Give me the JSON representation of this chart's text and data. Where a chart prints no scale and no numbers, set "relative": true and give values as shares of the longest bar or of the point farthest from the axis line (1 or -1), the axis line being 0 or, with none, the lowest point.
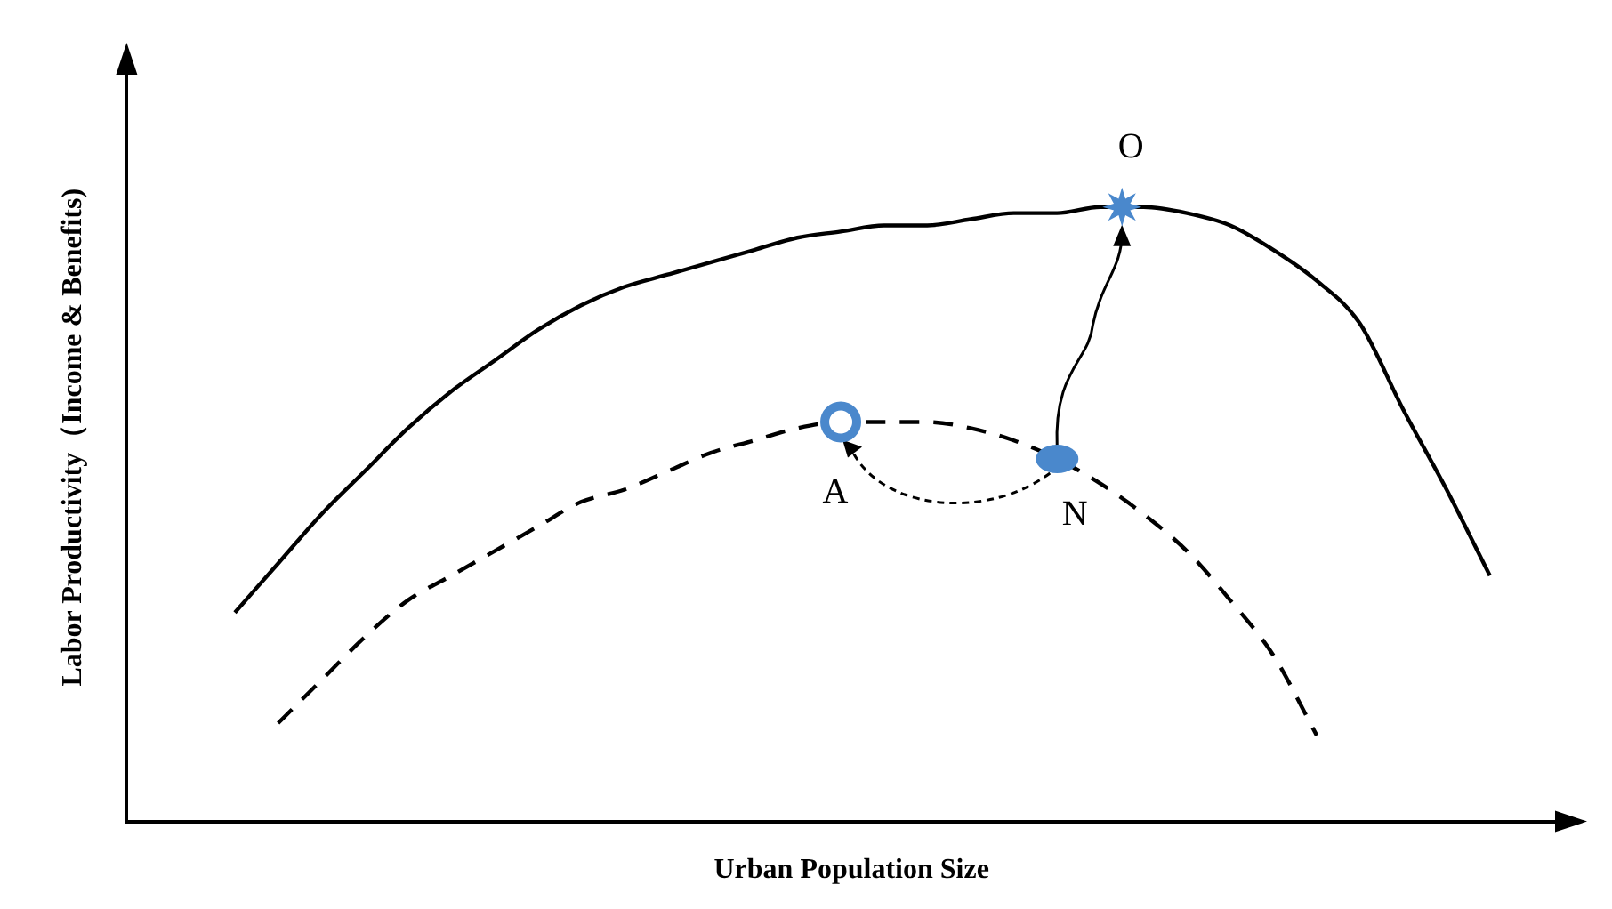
{
  "chart_data": {
    "type": "line",
    "relative": true,
    "xlabel": "Urban Population Size",
    "ylabel": "Labor Productivity（Income & Benefits)",
    "categories": [
      null,
      null,
      null,
      null,
      null,
      null,
      null,
      null,
      null,
      null,
      null,
      null,
      null,
      null,
      null,
      null,
      null,
      null,
      null,
      null,
      null,
      null,
      null,
      null,
      null,
      null,
      null,
      null,
      null,
      null
    ],
    "series": [
      {
        "color": "#000000",
        "line_style": "solid",
        "values": [
          0.34,
          0.42,
          0.5,
          0.57,
          0.64,
          0.7,
          0.75,
          0.8,
          0.84,
          0.87,
          0.89,
          0.91,
          0.93,
          0.95,
          0.96,
          0.97,
          0.97,
          0.98,
          0.99,
          0.99,
          1,
          1,
          0.99,
          0.97,
          0.93,
          0.88,
          0.81,
          0.67,
          0.54,
          0.4
        ]
      },
      {
        "color": "#000000",
        "line_style": "dashed",
        "values": [
          null,
          0.16,
          0.23,
          0.3,
          0.36,
          0.4,
          0.44,
          0.48,
          0.52,
          0.54,
          0.57,
          0.6,
          0.62,
          0.64,
          0.65,
          0.65,
          0.65,
          0.64,
          0.62,
          0.59,
          0.55,
          0.5,
          0.44,
          0.36,
          0.27,
          0.14,
          null,
          null,
          null,
          null
        ]
      }
    ],
    "annotations": [
      "A",
      "N",
      "O"
    ]
  }
}
